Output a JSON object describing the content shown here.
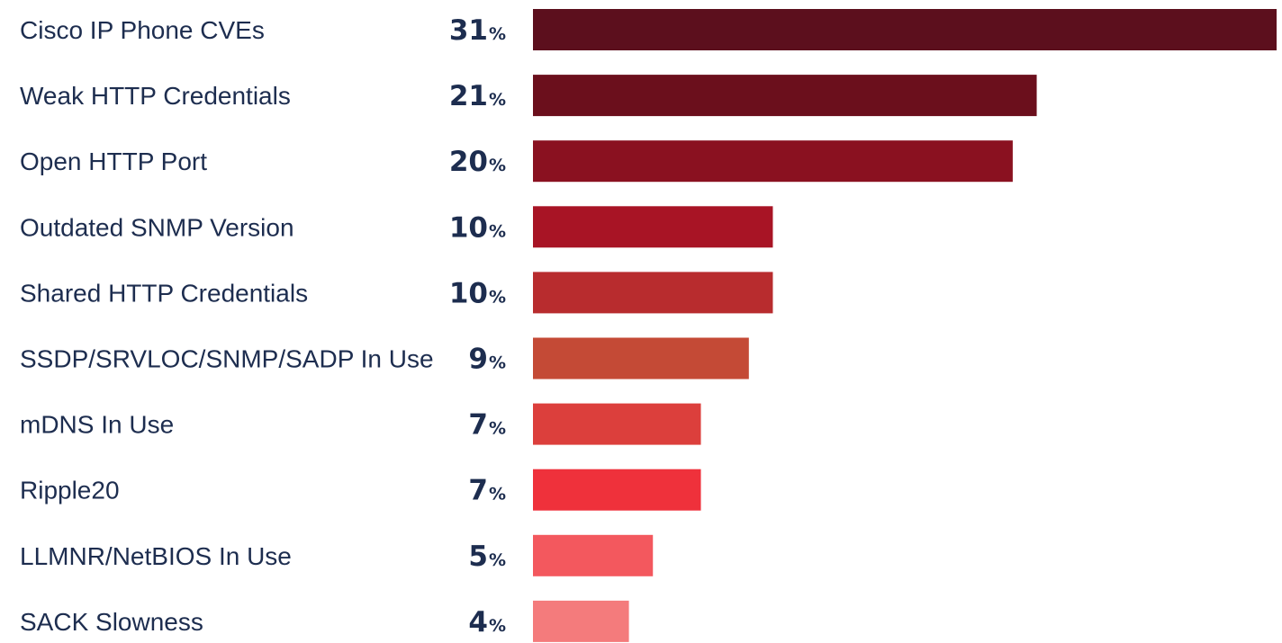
{
  "chart_data": {
    "type": "bar",
    "orientation": "horizontal",
    "title": "",
    "xlabel": "",
    "ylabel": "",
    "unit": "%",
    "grid": false,
    "legend": "none",
    "xlim": [
      0,
      31
    ],
    "categories": [
      "Cisco IP Phone CVEs",
      "Weak HTTP Credentials",
      "Open HTTP Port",
      "Outdated SNMP Version",
      "Shared HTTP Credentials",
      "SSDP/SRVLOC/SNMP/SADP In Use",
      "mDNS In Use",
      "Ripple20",
      "LLMNR/NetBIOS In Use",
      "SACK Slowness"
    ],
    "values": [
      31,
      21,
      20,
      10,
      10,
      9,
      7,
      7,
      5,
      4
    ],
    "colors": [
      "#5c0f1d",
      "#6b0f1c",
      "#8a1120",
      "#a81425",
      "#b82c2e",
      "#c44a36",
      "#dc3f3c",
      "#ef313b",
      "#f3585e",
      "#f47b7c"
    ]
  }
}
